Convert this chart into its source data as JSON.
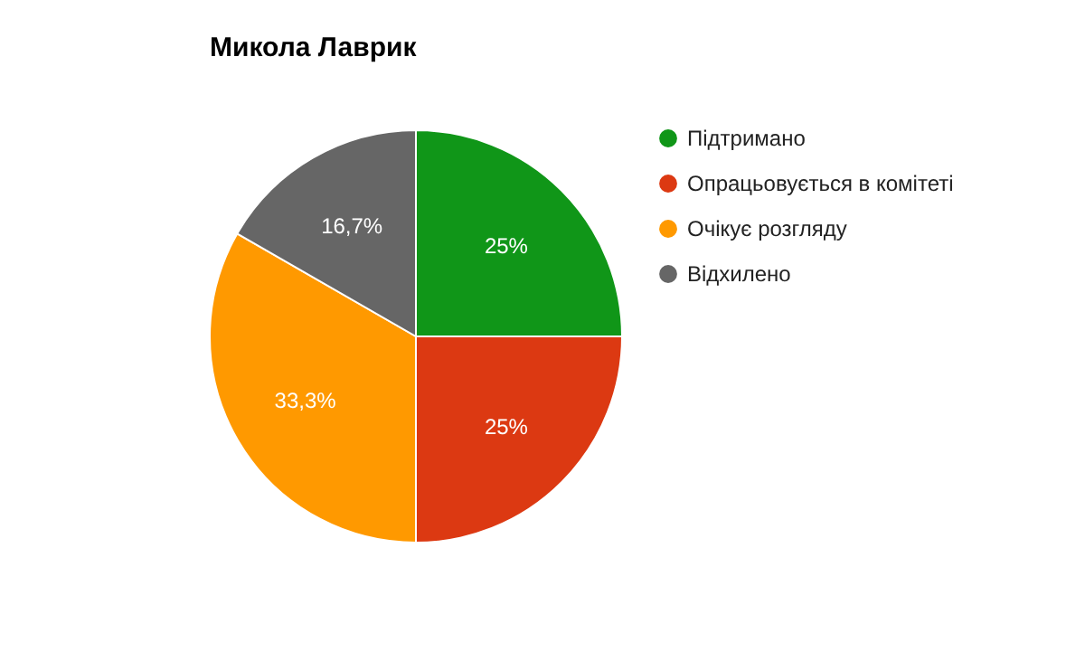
{
  "chart_data": {
    "type": "pie",
    "title": "Микола Лаврик",
    "categories": [
      "Підтримано",
      "Опрацьовується в комітеті",
      "Очікує розгляду",
      "Відхилено"
    ],
    "values": [
      25,
      25,
      33.3,
      16.7
    ],
    "colors": [
      "#109618",
      "#dc3912",
      "#ff9900",
      "#666666"
    ],
    "value_labels": [
      "25%",
      "25%",
      "33,3%",
      "16,7%"
    ],
    "legend": "right"
  }
}
